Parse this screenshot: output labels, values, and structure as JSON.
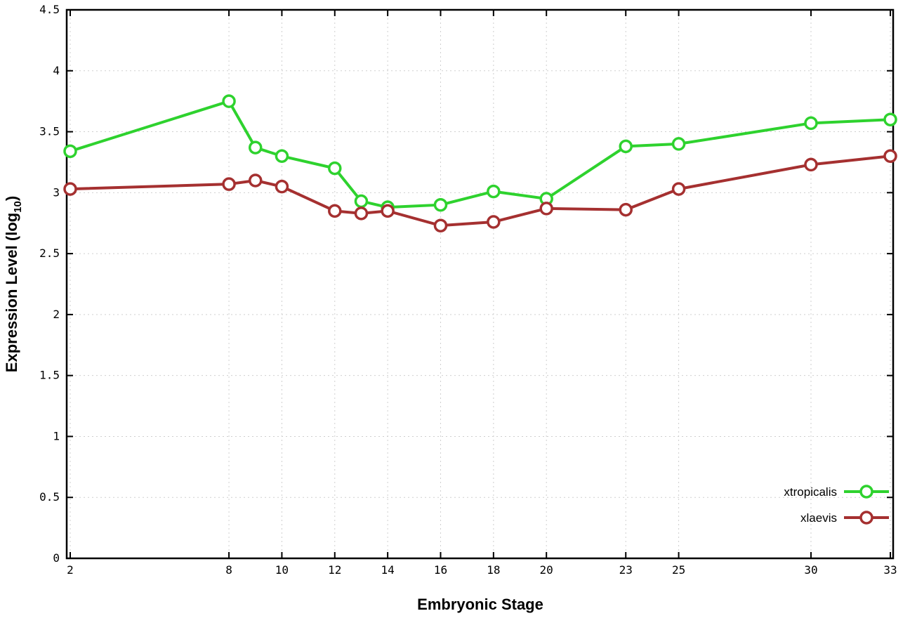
{
  "chart_data": {
    "type": "line",
    "title": "",
    "xlabel": "Embryonic Stage",
    "ylabel_main": "Expression Level (log",
    "ylabel_sub": "10",
    "ylabel_close": ")",
    "x": [
      2,
      8,
      9,
      10,
      12,
      13,
      14,
      16,
      18,
      20,
      23,
      25,
      30,
      33
    ],
    "series": [
      {
        "name": "xtropicalis",
        "color": "#2ed22e",
        "values": [
          3.34,
          3.75,
          3.37,
          3.3,
          3.2,
          2.93,
          2.88,
          2.9,
          3.01,
          2.95,
          3.38,
          3.4,
          3.57,
          3.6
        ]
      },
      {
        "name": "xlaevis",
        "color": "#a53030",
        "values": [
          3.03,
          3.07,
          3.1,
          3.05,
          2.85,
          2.83,
          2.85,
          2.73,
          2.76,
          2.87,
          2.86,
          3.03,
          3.23,
          3.3
        ]
      }
    ],
    "xticks": [
      2,
      8,
      10,
      12,
      14,
      16,
      18,
      20,
      23,
      25,
      30,
      33
    ],
    "yticks": [
      0,
      0.5,
      1,
      1.5,
      2,
      2.5,
      3,
      3.5,
      4,
      4.5
    ],
    "xlim": [
      2,
      33
    ],
    "ylim": [
      0,
      4.5
    ],
    "grid": true,
    "legend_position": "bottom-right",
    "legend": [
      "xtropicalis",
      "xlaevis"
    ]
  },
  "style": {
    "background": "#ffffff",
    "grid_color": "#cfcfcf",
    "border_color": "#000000",
    "tick_color": "#000000",
    "marker_fill": "#ffffff",
    "line_width": 4,
    "marker_radius": 8,
    "marker_stroke_width": 3.5
  }
}
